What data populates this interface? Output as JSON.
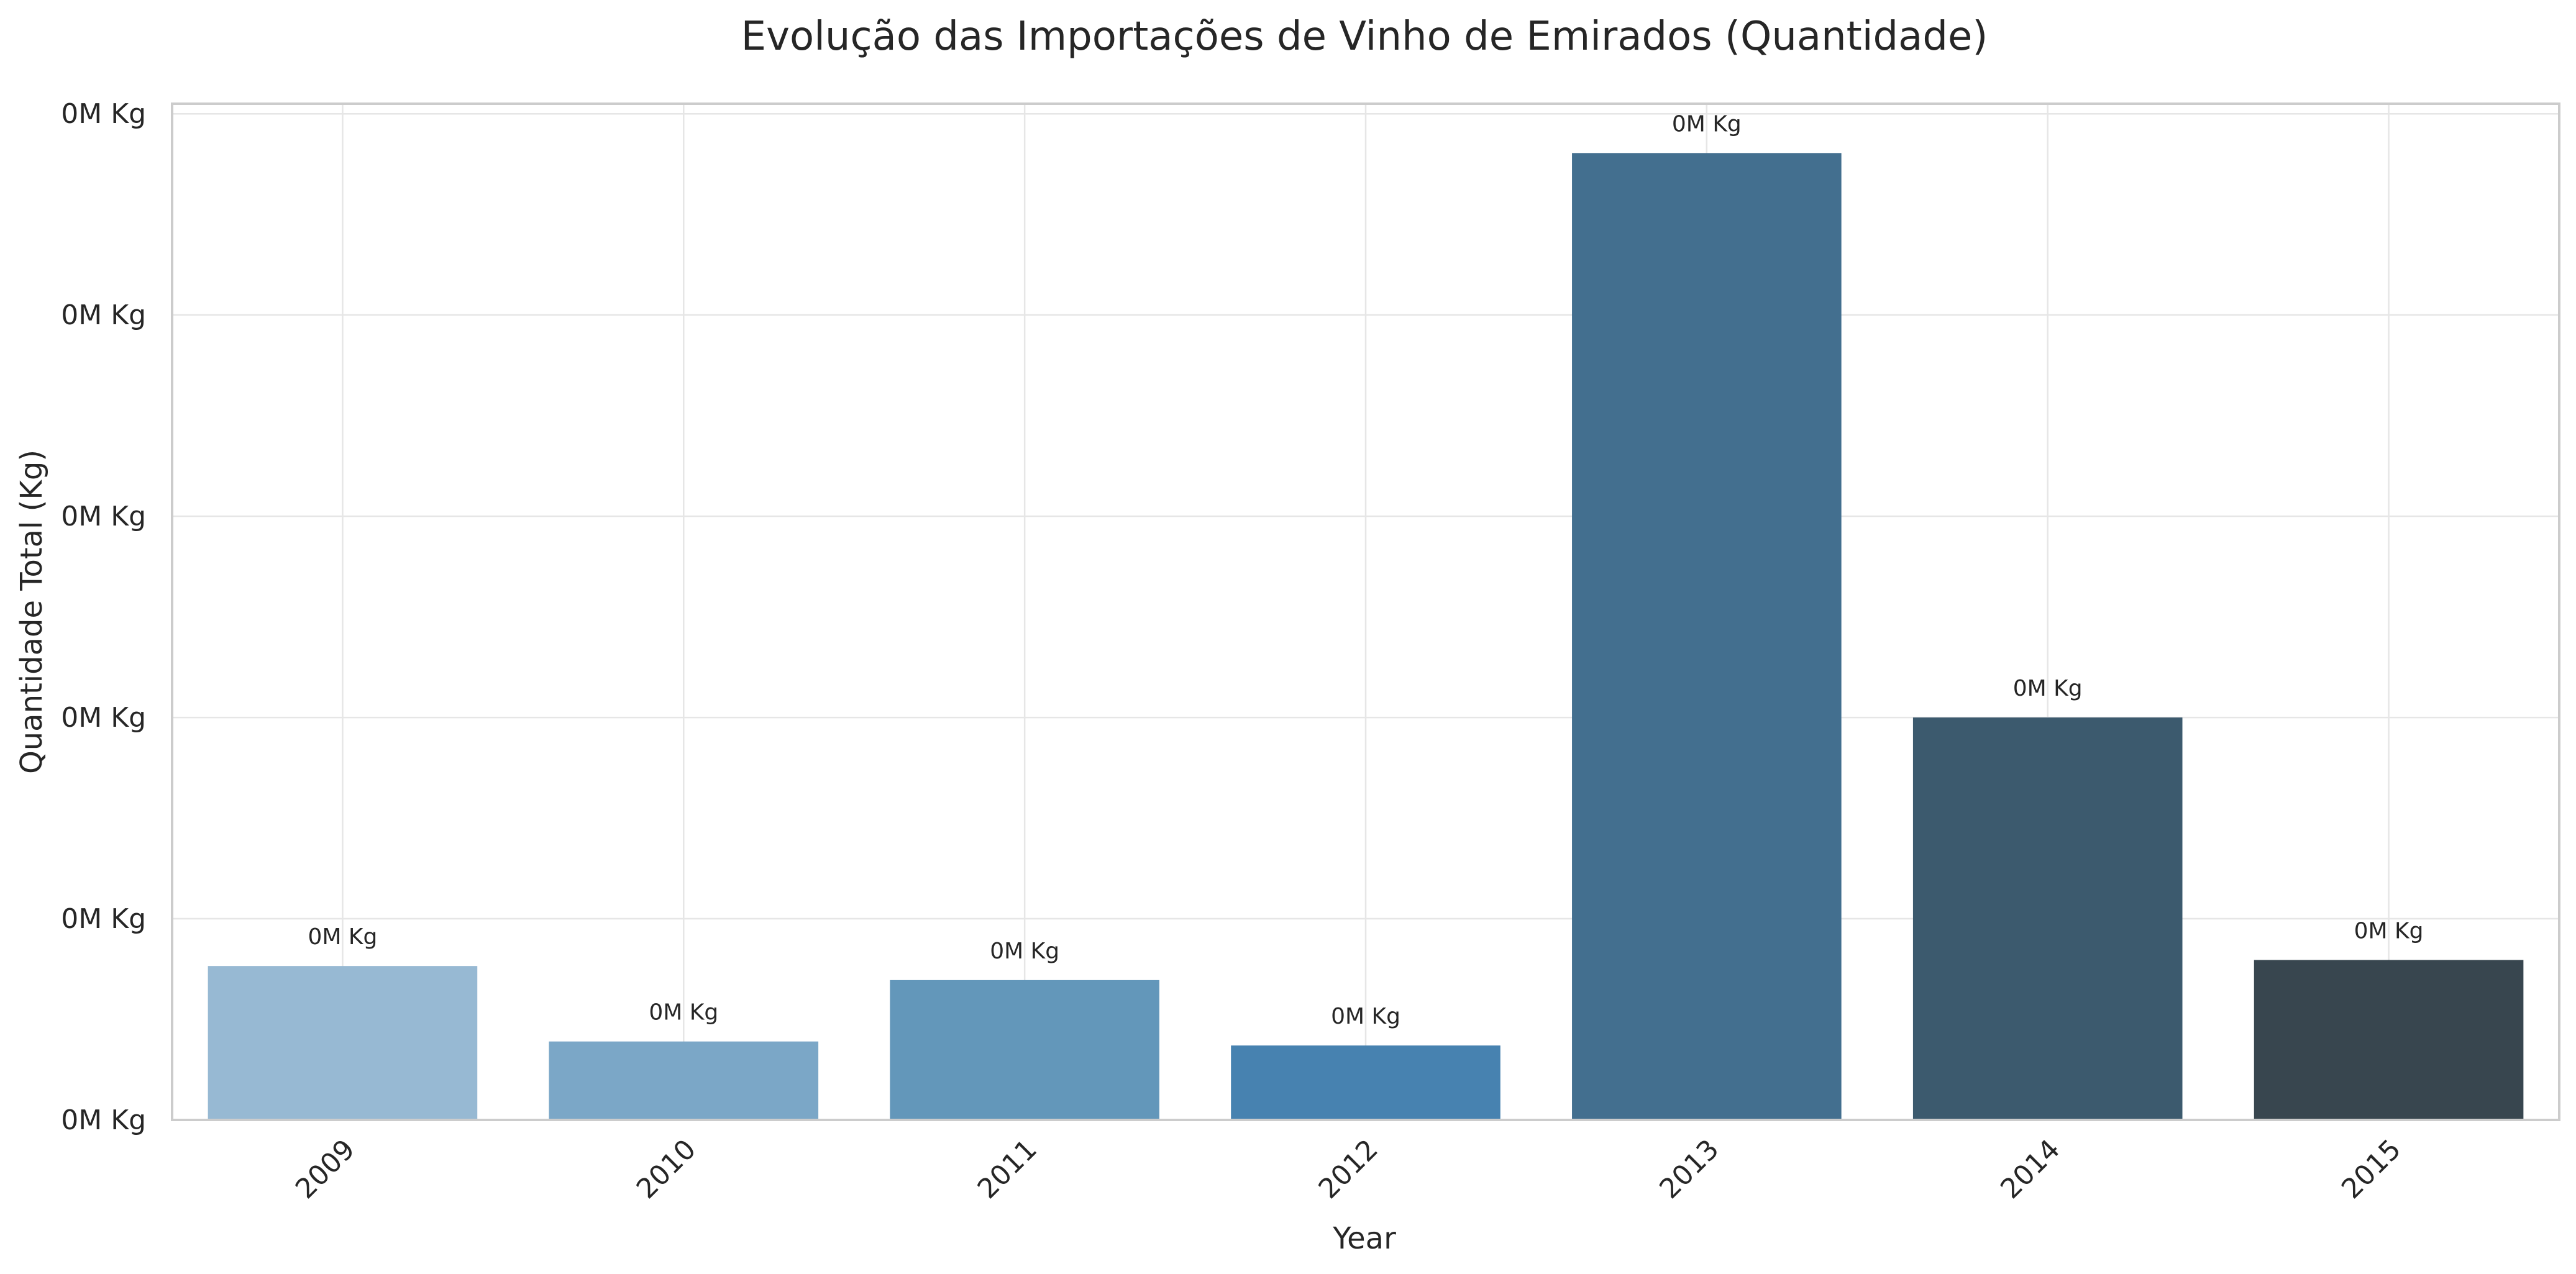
{
  "chart_data": {
    "type": "bar",
    "title": "Evolução das Importações de Vinho de Emirados (Quantidade)",
    "xlabel": "Year",
    "ylabel": "Quantidade Total (Kg)",
    "categories": [
      "2009",
      "2010",
      "2011",
      "2012",
      "2013",
      "2014",
      "2015"
    ],
    "values": [
      153,
      78,
      139,
      74,
      961,
      400,
      159
    ],
    "data_labels": [
      "0M Kg",
      "0M Kg",
      "0M Kg",
      "0M Kg",
      "0M Kg",
      "0M Kg",
      "0M Kg"
    ],
    "ylim": [
      0,
      1010
    ],
    "yticks": [
      0,
      200,
      400,
      600,
      800,
      1000
    ],
    "ytick_labels": [
      "0M Kg",
      "0M Kg",
      "0M Kg",
      "0M Kg",
      "0M Kg",
      "0M Kg"
    ],
    "grid": true,
    "legend": "none",
    "colors": [
      "#97b9d3",
      "#7ba7c7",
      "#6397ba",
      "#4782b0",
      "#436f8f",
      "#3c5a6e",
      "#38464f"
    ]
  }
}
